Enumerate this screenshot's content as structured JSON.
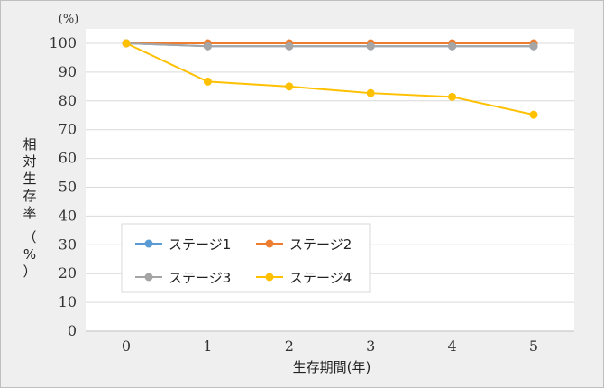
{
  "chart_data": {
    "type": "line",
    "title": "",
    "xlabel": "生存期間(年)",
    "ylabel_chars": [
      "相",
      "対",
      "生",
      "存",
      "率"
    ],
    "ylabel_unit_chars": [
      "（",
      "%",
      "）"
    ],
    "y_unit": "(%)",
    "x": [
      0,
      1,
      2,
      3,
      4,
      5
    ],
    "xlim": [
      0,
      5
    ],
    "ylim": [
      0,
      100
    ],
    "yticks": [
      0,
      10,
      20,
      30,
      40,
      50,
      60,
      70,
      80,
      90,
      100
    ],
    "grid": true,
    "legend_position": "lower-left",
    "series": [
      {
        "name": "ステージ1",
        "color": "#5b9bd5",
        "values": [
          100,
          99,
          99,
          99,
          99,
          99
        ]
      },
      {
        "name": "ステージ2",
        "color": "#ed7d31",
        "values": [
          100,
          100,
          100,
          100,
          100,
          100
        ]
      },
      {
        "name": "ステージ3",
        "color": "#a5a5a5",
        "values": [
          100,
          99,
          99,
          99,
          99,
          99
        ]
      },
      {
        "name": "ステージ4",
        "color": "#ffc000",
        "values": [
          100,
          86.7,
          85,
          82.7,
          81.4,
          75.2
        ]
      }
    ]
  }
}
